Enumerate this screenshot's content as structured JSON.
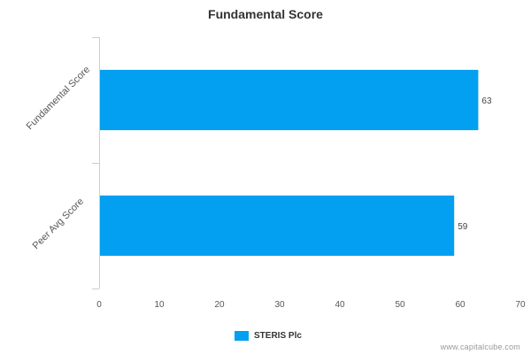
{
  "chart_data": {
    "type": "bar",
    "orientation": "horizontal",
    "title": "Fundamental Score",
    "categories": [
      "Fundamental Score",
      "Peer Avg Score"
    ],
    "series": [
      {
        "name": "STERIS Plc",
        "values": [
          63,
          59
        ]
      }
    ],
    "data_labels": [
      "63",
      "59"
    ],
    "xlim": [
      0,
      70
    ],
    "x_ticks": [
      0,
      10,
      20,
      30,
      40,
      50,
      60,
      70
    ],
    "xlabel": "",
    "ylabel": "",
    "grid": false,
    "legend_position": "bottom",
    "bar_color": "#039ff1"
  },
  "legend": {
    "label": "STERIS Plc"
  },
  "watermark": "www.capitalcube.com"
}
